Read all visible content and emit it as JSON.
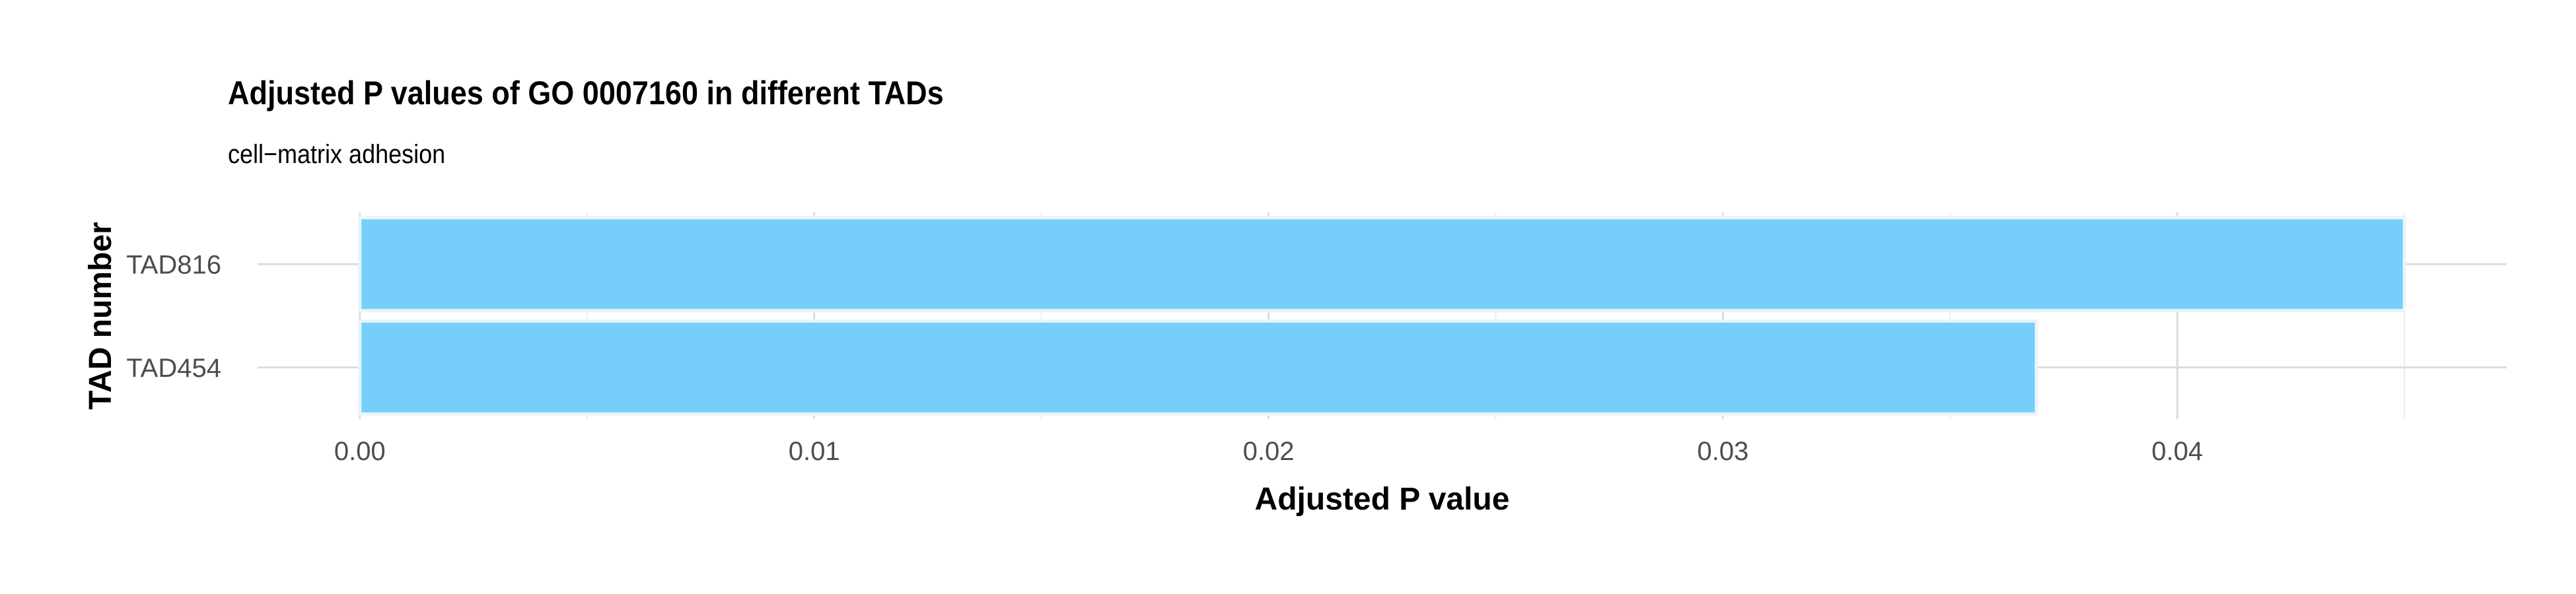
{
  "chart_data": {
    "type": "bar",
    "orientation": "horizontal",
    "title": "Adjusted P values of GO 0007160 in different TADs",
    "subtitle": "cell−matrix adhesion",
    "xlabel": "Adjusted P value",
    "ylabel": "TAD number",
    "categories": [
      "TAD816",
      "TAD454"
    ],
    "values": [
      0.045,
      0.0369
    ],
    "xlim": [
      -0.00225,
      0.04725
    ],
    "x_ticks": [
      0.0,
      0.01,
      0.02,
      0.03,
      0.04
    ],
    "x_tick_labels": [
      "0.00",
      "0.01",
      "0.02",
      "0.03",
      "0.04"
    ],
    "bar_color": "#75CFFA",
    "bar_outline_color": "#EAF4FA",
    "grid": true,
    "legend": "none"
  }
}
